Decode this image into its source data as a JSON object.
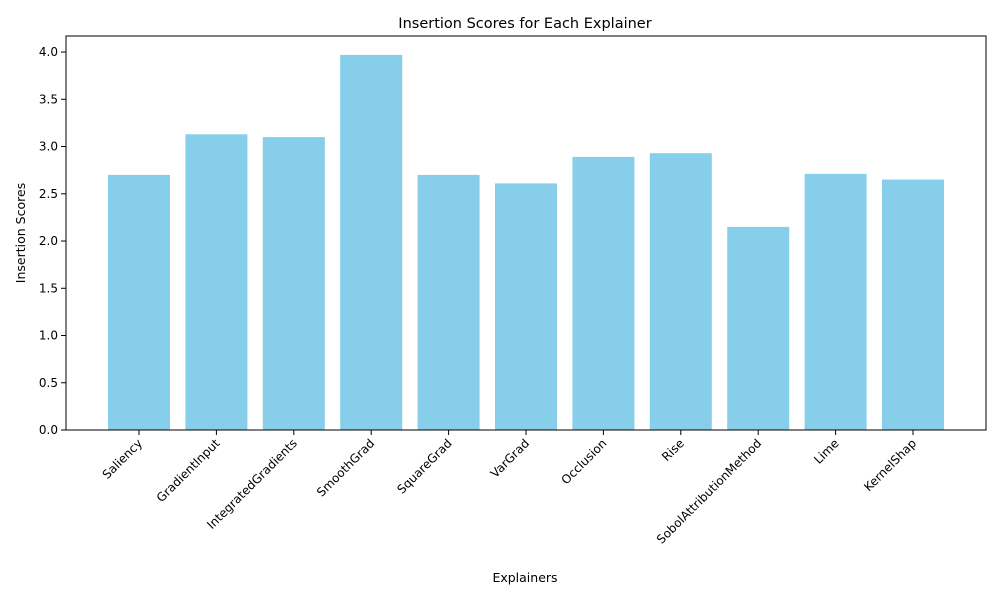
{
  "chart_data": {
    "type": "bar",
    "title": "Insertion Scores for Each Explainer",
    "xlabel": "Explainers",
    "ylabel": "Insertion Scores",
    "categories": [
      "Saliency",
      "GradientInput",
      "IntegratedGradients",
      "SmoothGrad",
      "SquareGrad",
      "VarGrad",
      "Occlusion",
      "Rise",
      "SobolAttributionMethod",
      "Lime",
      "KernelShap"
    ],
    "values": [
      2.7,
      3.13,
      3.1,
      3.97,
      2.7,
      2.61,
      2.89,
      2.93,
      2.15,
      2.71,
      2.65
    ],
    "ylim": [
      0,
      4.17
    ],
    "yticks": [
      "0.0",
      "0.5",
      "1.0",
      "1.5",
      "2.0",
      "2.5",
      "3.0",
      "3.5",
      "4.0"
    ],
    "grid": false,
    "bar_color": "#87CEEB"
  }
}
